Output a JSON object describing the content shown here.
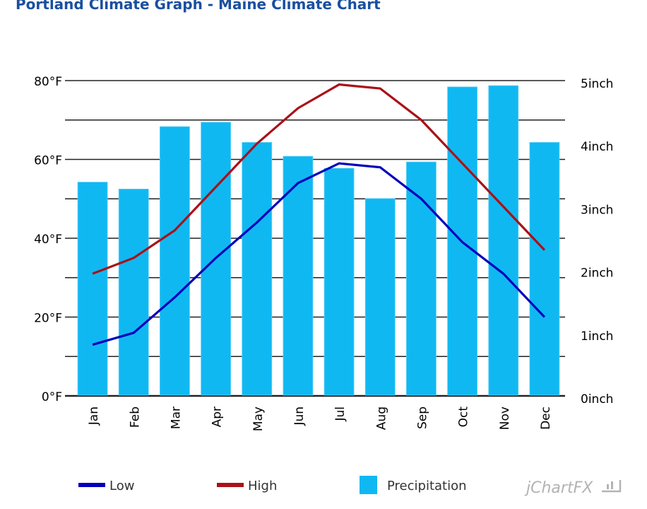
{
  "page": {
    "title": "Portland Climate Graph - Maine Climate Chart",
    "brand": "jChartFX"
  },
  "chart_data": {
    "type": "bar+line",
    "title": "Portland Climate Graph - Maine Climate Chart",
    "categories": [
      "Jan",
      "Feb",
      "Mar",
      "Apr",
      "May",
      "Jun",
      "Jul",
      "Aug",
      "Sep",
      "Oct",
      "Nov",
      "Dec"
    ],
    "series": [
      {
        "name": "Precipitation",
        "type": "bar",
        "axis": "right",
        "color": "#10b8f2",
        "values": [
          3.39,
          3.28,
          4.27,
          4.34,
          4.02,
          3.8,
          3.61,
          3.13,
          3.71,
          4.9,
          4.92,
          4.02
        ]
      },
      {
        "name": "Low",
        "type": "line",
        "axis": "left",
        "color": "#0000bb",
        "values": [
          13,
          16,
          25,
          35,
          44,
          54,
          59,
          58,
          50,
          39,
          31,
          20
        ]
      },
      {
        "name": "High",
        "type": "line",
        "axis": "left",
        "color": "#aa1118",
        "values": [
          31,
          35,
          42,
          53,
          64,
          73,
          79,
          78,
          70,
          59,
          48,
          37
        ]
      }
    ],
    "y_left": {
      "unit": "°F",
      "ylim": [
        0,
        80
      ],
      "ticks": [
        "0°F",
        "20°F",
        "40°F",
        "60°F",
        "80°F"
      ],
      "tick_values": [
        0,
        20,
        40,
        60,
        80
      ],
      "grid_step": 10
    },
    "y_right": {
      "unit": "inch",
      "ylim": [
        0,
        5
      ],
      "ticks": [
        "0inch",
        "1inch",
        "2inch",
        "3inch",
        "4inch",
        "5inch"
      ],
      "tick_values": [
        0,
        1,
        2,
        3,
        4,
        5
      ]
    },
    "xlabel": "",
    "grid": true,
    "legend": {
      "position": "bottom",
      "items": [
        {
          "label": "Low",
          "color": "#0000bb",
          "shape": "line"
        },
        {
          "label": "High",
          "color": "#aa1118",
          "shape": "line"
        },
        {
          "label": "Precipitation",
          "color": "#10b8f2",
          "shape": "box"
        }
      ]
    }
  }
}
